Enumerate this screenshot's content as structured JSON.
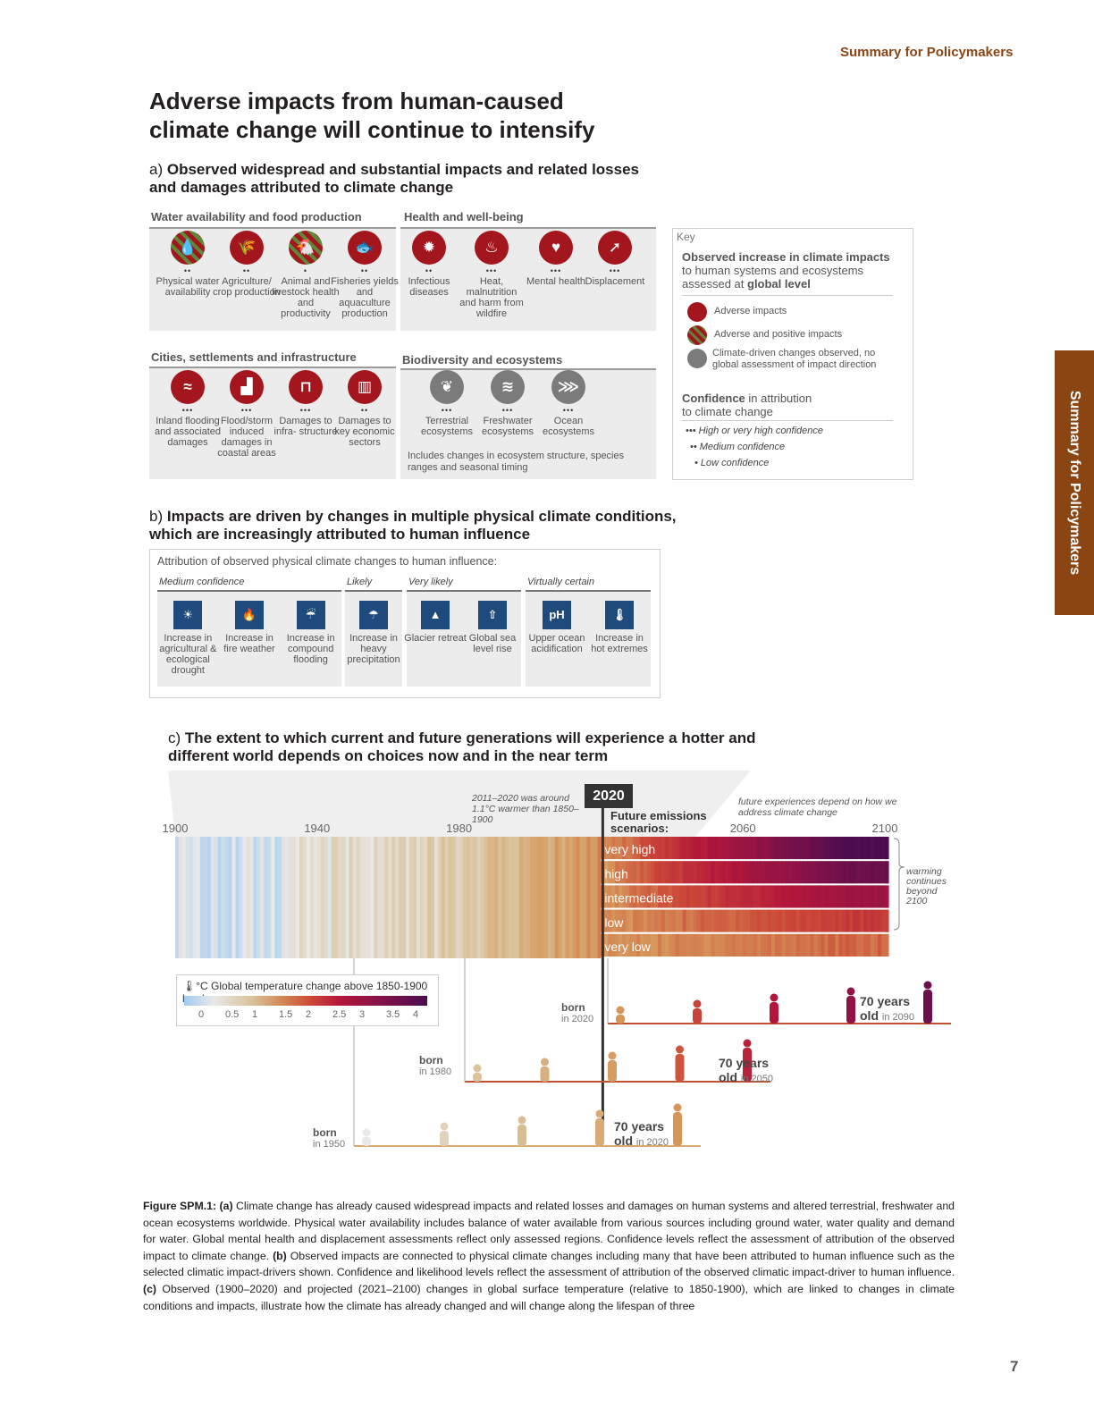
{
  "header": {
    "running_title": "Summary for Policymakers",
    "side_tab": "Summary for Policymakers",
    "page_number": "7"
  },
  "title": "Adverse impacts from human-caused climate change will continue to intensify",
  "section_a": {
    "letter": "a)",
    "heading": "Observed widespread and substantial impacts and related losses and damages attributed to climate change",
    "groups": [
      {
        "title": "Water availability and food production",
        "items": [
          {
            "label": "Physical water availability",
            "confidence": "••",
            "icon": "water-drop-icon",
            "type": "mixed"
          },
          {
            "label": "Agriculture/ crop production",
            "confidence": "••",
            "icon": "wheat-icon",
            "type": "adverse"
          },
          {
            "label": "Animal and livestock health and productivity",
            "confidence": "•",
            "icon": "chicken-icon",
            "type": "mixed"
          },
          {
            "label": "Fisheries yields and aquaculture production",
            "confidence": "••",
            "icon": "fish-icon",
            "type": "adverse"
          }
        ]
      },
      {
        "title": "Health and well-being",
        "items": [
          {
            "label": "Infectious diseases",
            "confidence": "••",
            "icon": "virus-icon",
            "type": "adverse"
          },
          {
            "label": "Heat, malnutrition and harm from wildfire",
            "confidence": "•••",
            "icon": "heat-icon",
            "type": "adverse"
          },
          {
            "label": "Mental health",
            "confidence": "•••",
            "icon": "mental-health-icon",
            "type": "adverse"
          },
          {
            "label": "Displacement",
            "confidence": "•••",
            "icon": "displacement-icon",
            "type": "adverse"
          }
        ]
      },
      {
        "title": "Cities, settlements and infrastructure",
        "items": [
          {
            "label": "Inland flooding and associated damages",
            "confidence": "•••",
            "icon": "inland-flood-icon",
            "type": "adverse"
          },
          {
            "label": "Flood/storm induced damages in coastal areas",
            "confidence": "•••",
            "icon": "coastal-flood-icon",
            "type": "adverse"
          },
          {
            "label": "Damages to infra- structure",
            "confidence": "•••",
            "icon": "bridge-icon",
            "type": "adverse"
          },
          {
            "label": "Damages to key economic sectors",
            "confidence": "••",
            "icon": "economy-icon",
            "type": "adverse"
          }
        ]
      },
      {
        "title": "Biodiversity and ecosystems",
        "items": [
          {
            "label": "Terrestrial ecosystems",
            "confidence": "•••",
            "icon": "terrestrial-icon",
            "type": "neutral"
          },
          {
            "label": "Freshwater ecosystems",
            "confidence": "•••",
            "icon": "freshwater-icon",
            "type": "neutral"
          },
          {
            "label": "Ocean ecosystems",
            "confidence": "•••",
            "icon": "ocean-icon",
            "type": "neutral"
          }
        ],
        "note": "Includes changes in ecosystem structure, species ranges and seasonal timing"
      }
    ],
    "key": {
      "label": "Key",
      "heading_pre": "Observed increase in climate impacts",
      "heading_mid": "to human systems and ecosystems",
      "heading_post": "assessed at",
      "heading_bold": "global level",
      "legend": [
        "Adverse impacts",
        "Adverse and positive impacts",
        "Climate-driven changes observed, no global assessment of impact direction"
      ],
      "confidence_title_bold": "Confidence",
      "confidence_title_rest": "in attribution",
      "confidence_title_line2": "to climate change",
      "confidence_levels": [
        "••• High or very high confidence",
        "•• Medium confidence",
        "• Low confidence"
      ]
    }
  },
  "section_b": {
    "letter": "b)",
    "heading": "Impacts are driven by changes in multiple physical climate conditions, which are increasingly attributed to human influence",
    "box_title": "Attribution of observed physical climate changes to human influence:",
    "groups": [
      {
        "level": "Medium confidence",
        "items": [
          {
            "label": "Increase in agricultural & ecological drought",
            "icon": "drought-icon"
          },
          {
            "label": "Increase in fire weather",
            "icon": "fire-icon"
          },
          {
            "label": "Increase in compound flooding",
            "icon": "compound-flood-icon"
          }
        ]
      },
      {
        "level": "Likely",
        "items": [
          {
            "label": "Increase in heavy precipitation",
            "icon": "rain-icon"
          }
        ]
      },
      {
        "level": "Very likely",
        "items": [
          {
            "label": "Glacier retreat",
            "icon": "glacier-icon"
          },
          {
            "label": "Global sea level rise",
            "icon": "sea-level-icon"
          }
        ]
      },
      {
        "level": "Virtually certain",
        "items": [
          {
            "label": "Upper ocean acidification",
            "icon": "ph-icon",
            "glyph": "pH"
          },
          {
            "label": "Increase in hot extremes",
            "icon": "thermometer-icon"
          }
        ]
      }
    ]
  },
  "section_c": {
    "letter": "c)",
    "heading": "The extent to which current and future generations will experience a hotter and different world depends on choices now and in the near term",
    "year_marker": "2020",
    "note_warmer": "2011–2020 was around 1.1°C warmer than 1850–1900",
    "future_label": "Future emissions scenarios:",
    "note_future": "future experiences depend on how we address climate change",
    "note_beyond": "warming continues beyond 2100",
    "legend_title": "Global temperature change above 1850-1900 levels",
    "legend_unit": "°C",
    "legend_ticks": [
      "0",
      "0.5",
      "1",
      "1.5",
      "2",
      "2.5",
      "3",
      "3.5",
      "4"
    ],
    "generations": [
      {
        "born": "born",
        "year": "in 2020",
        "age": "70 years",
        "old_word": "old",
        "old_year": "in 2090"
      },
      {
        "born": "born",
        "year": "in 1980",
        "age": "70 years",
        "old_word": "old",
        "old_year": "in 2050"
      },
      {
        "born": "born",
        "year": "in 1950",
        "age": "70 years",
        "old_word": "old",
        "old_year": "in 2020"
      }
    ]
  },
  "chart_data": {
    "type": "heatmap",
    "title": "",
    "x_ticks": [
      1900,
      1940,
      1980,
      2060,
      2100
    ],
    "xlim": [
      1900,
      2100
    ],
    "observed_years": [
      1900,
      2020
    ],
    "scenarios": [
      {
        "name": "very high",
        "end_warming": 4.0
      },
      {
        "name": "high",
        "end_warming": 3.5
      },
      {
        "name": "intermediate",
        "end_warming": 2.7
      },
      {
        "name": "low",
        "end_warming": 1.8
      },
      {
        "name": "very low",
        "end_warming": 1.4
      }
    ]
  },
  "caption": {
    "fig_label": "Figure SPM.1:",
    "a_label": "(a)",
    "a_text": "Climate change has already caused widespread impacts and related losses and damages on human systems and altered terrestrial, freshwater and ocean ecosystems worldwide. Physical water availability includes balance of water available from various sources including ground water, water quality and demand for water. Global mental health and displacement assessments reflect only assessed regions. Confidence levels reflect the assessment of attribution of the observed impact to climate change.",
    "b_label": "(b)",
    "b_text": "Observed impacts are connected to physical climate changes including many that have been attributed to human influence such as the selected climatic impact-drivers shown. Confidence and likelihood levels reflect the assessment of attribution of the observed climatic impact-driver to human influence.",
    "c_label": "(c)",
    "c_text": "Observed (1900–2020) and projected (2021–2100) changes in global surface temperature (relative to 1850-1900), which are linked to changes in climate conditions and impacts, illustrate how the climate has already changed and will change along the lifespan of three"
  },
  "colors": {
    "adverse": "#a3161e",
    "positive": "#5d8a3a",
    "neutral": "#7b7b7b",
    "accent": "#8b4513",
    "driver": "#1f4a7c"
  }
}
